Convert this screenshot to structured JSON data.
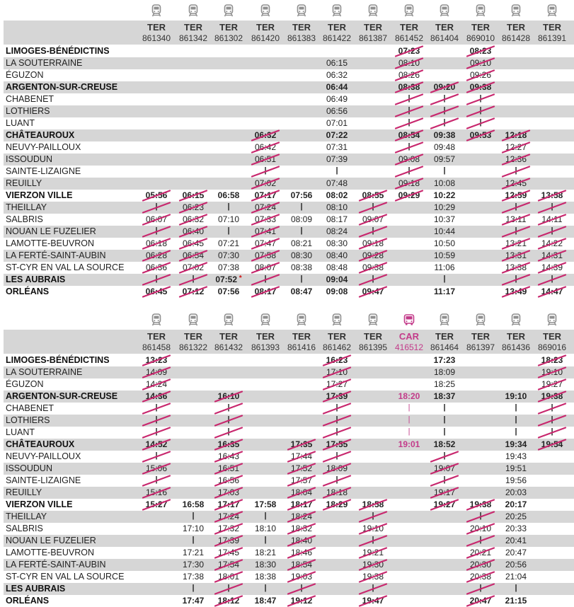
{
  "timetables": [
    {
      "columns": [
        {
          "kind": "TER",
          "number": "861340"
        },
        {
          "kind": "TER",
          "number": "861342"
        },
        {
          "kind": "TER",
          "number": "861302"
        },
        {
          "kind": "TER",
          "number": "861420"
        },
        {
          "kind": "TER",
          "number": "861383"
        },
        {
          "kind": "TER",
          "number": "861422"
        },
        {
          "kind": "TER",
          "number": "861387"
        },
        {
          "kind": "TER",
          "number": "861452"
        },
        {
          "kind": "TER",
          "number": "861404"
        },
        {
          "kind": "TER",
          "number": "869010"
        },
        {
          "kind": "TER",
          "number": "861428"
        },
        {
          "kind": "TER",
          "number": "861391"
        }
      ],
      "rows": [
        {
          "station": "LIMOGES-BÉNÉDICTINS",
          "bold": true,
          "times": [
            "",
            "",
            "",
            "",
            "",
            "",
            "",
            "07:23",
            "",
            "08:23",
            "",
            ""
          ],
          "cancelled": [
            7,
            9
          ]
        },
        {
          "station": "LA SOUTERRAINE",
          "times": [
            "",
            "",
            "",
            "",
            "",
            "06:15",
            "",
            "08:10",
            "",
            "09:10",
            "",
            ""
          ],
          "cancelled": [
            7,
            9
          ]
        },
        {
          "station": "ÉGUZON",
          "times": [
            "",
            "",
            "",
            "",
            "",
            "06:32",
            "",
            "08:26",
            "",
            "09:26",
            "",
            ""
          ],
          "cancelled": [
            7,
            9
          ]
        },
        {
          "station": "ARGENTON-SUR-CREUSE",
          "bold": true,
          "times": [
            "",
            "",
            "",
            "",
            "",
            "06:44",
            "",
            "08:38",
            "09:20",
            "09:38",
            "",
            ""
          ],
          "cancelled": [
            7,
            8,
            9
          ]
        },
        {
          "station": "CHABENET",
          "times": [
            "",
            "",
            "",
            "",
            "",
            "06:49",
            "",
            "|",
            "|",
            "|",
            "",
            ""
          ],
          "cancelled": [
            7,
            8,
            9
          ]
        },
        {
          "station": "LOTHIERS",
          "times": [
            "",
            "",
            "",
            "",
            "",
            "06:56",
            "",
            "|",
            "|",
            "|",
            "",
            ""
          ],
          "cancelled": [
            7,
            8,
            9
          ]
        },
        {
          "station": "LUANT",
          "times": [
            "",
            "",
            "",
            "",
            "",
            "07:01",
            "",
            "|",
            "|",
            "|",
            "",
            ""
          ],
          "cancelled": [
            7,
            8,
            9
          ]
        },
        {
          "station": "CHÂTEAUROUX",
          "bold": true,
          "times": [
            "",
            "",
            "",
            "06:32",
            "",
            "07:22",
            "",
            "08:54",
            "09:38",
            "09:53",
            "12:18",
            ""
          ],
          "cancelled": [
            3,
            7,
            9,
            10
          ]
        },
        {
          "station": "NEUVY-PAILLOUX",
          "times": [
            "",
            "",
            "",
            "06:42",
            "",
            "07:31",
            "",
            "|",
            "09:48",
            "",
            "12:27",
            ""
          ],
          "cancelled": [
            3,
            7,
            10
          ]
        },
        {
          "station": "ISSOUDUN",
          "times": [
            "",
            "",
            "",
            "06:51",
            "",
            "07:39",
            "",
            "09:08",
            "09:57",
            "",
            "12:36",
            ""
          ],
          "cancelled": [
            3,
            7,
            10
          ]
        },
        {
          "station": "SAINTE-LIZAIGNE",
          "times": [
            "",
            "",
            "",
            "|",
            "",
            "|",
            "",
            "|",
            "|",
            "",
            "|",
            ""
          ],
          "cancelled": [
            3,
            7,
            10
          ]
        },
        {
          "station": "REUILLY",
          "times": [
            "",
            "",
            "",
            "07:02",
            "",
            "07:48",
            "",
            "09:18",
            "10:08",
            "",
            "12:45",
            ""
          ],
          "cancelled": [
            3,
            7,
            10
          ]
        },
        {
          "station": "VIERZON VILLE",
          "bold": true,
          "times": [
            "05:56",
            "06:15",
            "06:58",
            "07:17",
            "07:56",
            "08:02",
            "08:55",
            "09:29",
            "10:22",
            "",
            "12:59",
            "13:58"
          ],
          "cancelled": [
            0,
            1,
            3,
            6,
            7,
            10,
            11
          ]
        },
        {
          "station": "THEILLAY",
          "times": [
            "|",
            "06:23",
            "|",
            "07:24",
            "|",
            "08:10",
            "|",
            "",
            "10:29",
            "",
            "|",
            "|"
          ],
          "cancelled": [
            0,
            1,
            3,
            6,
            10,
            11
          ]
        },
        {
          "station": "SALBRIS",
          "times": [
            "06:07",
            "06:32",
            "07:10",
            "07:33",
            "08:09",
            "08:17",
            "09:07",
            "",
            "10:37",
            "",
            "13:11",
            "14:11"
          ],
          "cancelled": [
            0,
            1,
            3,
            6,
            10,
            11
          ]
        },
        {
          "station": "NOUAN LE FUZELIER",
          "times": [
            "|",
            "06:40",
            "|",
            "07:41",
            "|",
            "08:24",
            "|",
            "",
            "10:44",
            "",
            "|",
            "|"
          ],
          "cancelled": [
            0,
            1,
            3,
            6,
            10,
            11
          ]
        },
        {
          "station": "LAMOTTE-BEUVRON",
          "times": [
            "06:18",
            "06:45",
            "07:21",
            "07:47",
            "08:21",
            "08:30",
            "09:18",
            "",
            "10:50",
            "",
            "13:21",
            "14:22"
          ],
          "cancelled": [
            0,
            1,
            3,
            6,
            10,
            11
          ]
        },
        {
          "station": "LA FERTÉ-SAINT-AUBIN",
          "times": [
            "06:28",
            "06:54",
            "07:30",
            "07:58",
            "08:30",
            "08:40",
            "09:28",
            "",
            "10:59",
            "",
            "13:31",
            "14:31"
          ],
          "cancelled": [
            0,
            1,
            3,
            6,
            10,
            11
          ]
        },
        {
          "station": "ST-CYR EN VAL LA SOURCE",
          "times": [
            "06:36",
            "07:02",
            "07:38",
            "08:07",
            "08:38",
            "08:48",
            "09:38",
            "",
            "11:06",
            "",
            "13:38",
            "14:39"
          ],
          "cancelled": [
            0,
            1,
            3,
            6,
            10,
            11
          ]
        },
        {
          "station": "LES AUBRAIS",
          "bold": true,
          "times": [
            "|",
            "|",
            "07:52",
            "|",
            "|",
            "09:04",
            "|",
            "",
            "|",
            "",
            "|",
            "|"
          ],
          "starred": [
            2
          ],
          "cancelled": [
            0,
            1,
            3,
            6,
            10,
            11
          ]
        },
        {
          "station": "ORLÉANS",
          "bold": true,
          "times": [
            "06:45",
            "07:12",
            "07:56",
            "08:17",
            "08:47",
            "09:08",
            "09:47",
            "",
            "11:17",
            "",
            "13:49",
            "14:47"
          ],
          "cancelled": [
            0,
            1,
            3,
            6,
            10,
            11
          ]
        }
      ]
    },
    {
      "columns": [
        {
          "kind": "TER",
          "number": "861458"
        },
        {
          "kind": "TER",
          "number": "861322"
        },
        {
          "kind": "TER",
          "number": "861432"
        },
        {
          "kind": "TER",
          "number": "861393"
        },
        {
          "kind": "TER",
          "number": "861416"
        },
        {
          "kind": "TER",
          "number": "861462"
        },
        {
          "kind": "TER",
          "number": "861395"
        },
        {
          "kind": "CAR",
          "number": "416512",
          "bus": true
        },
        {
          "kind": "TER",
          "number": "861464"
        },
        {
          "kind": "TER",
          "number": "861397"
        },
        {
          "kind": "TER",
          "number": "861436"
        },
        {
          "kind": "TER",
          "number": "869016"
        }
      ],
      "rows": [
        {
          "station": "LIMOGES-BÉNÉDICTINS",
          "bold": true,
          "times": [
            "13:23",
            "",
            "",
            "",
            "",
            "16:23",
            "",
            "",
            "17:23",
            "",
            "",
            "18:23"
          ],
          "cancelled": [
            0,
            5,
            11
          ]
        },
        {
          "station": "LA SOUTERRAINE",
          "times": [
            "14:09",
            "",
            "",
            "",
            "",
            "17:10",
            "",
            "",
            "18:09",
            "",
            "",
            "19:10"
          ],
          "cancelled": [
            0,
            5,
            11
          ]
        },
        {
          "station": "ÉGUZON",
          "times": [
            "14:24",
            "",
            "",
            "",
            "",
            "17:27",
            "",
            "",
            "18:25",
            "",
            "",
            "19:27"
          ],
          "cancelled": [
            0,
            5,
            11
          ]
        },
        {
          "station": "ARGENTON-SUR-CREUSE",
          "bold": true,
          "times": [
            "14:36",
            "",
            "16:10",
            "",
            "",
            "17:39",
            "",
            "18:20",
            "18:37",
            "",
            "19:10",
            "19:38"
          ],
          "cancelled": [
            0,
            2,
            5,
            11
          ]
        },
        {
          "station": "CHABENET",
          "times": [
            "|",
            "",
            "|",
            "",
            "",
            "|",
            "",
            "|",
            "|",
            "",
            "|",
            "|"
          ],
          "cancelled": [
            0,
            2,
            5,
            11
          ]
        },
        {
          "station": "LOTHIERS",
          "times": [
            "|",
            "",
            "|",
            "",
            "",
            "|",
            "",
            "|",
            "|",
            "",
            "|",
            "|"
          ],
          "cancelled": [
            0,
            2,
            5,
            11
          ]
        },
        {
          "station": "LUANT",
          "times": [
            "|",
            "",
            "|",
            "",
            "",
            "|",
            "",
            "|",
            "|",
            "",
            "|",
            "|"
          ],
          "cancelled": [
            0,
            2,
            5,
            11
          ]
        },
        {
          "station": "CHÂTEAUROUX",
          "bold": true,
          "times": [
            "14:52",
            "",
            "16:35",
            "",
            "17:35",
            "17:55",
            "",
            "19:01",
            "18:52",
            "",
            "19:34",
            "19:54"
          ],
          "cancelled": [
            0,
            2,
            4,
            5,
            11
          ]
        },
        {
          "station": "NEUVY-PAILLOUX",
          "times": [
            "|",
            "",
            "16:43",
            "",
            "17:44",
            "|",
            "",
            "",
            "|",
            "",
            "19:43",
            ""
          ],
          "cancelled": [
            0,
            2,
            4,
            5,
            8
          ]
        },
        {
          "station": "ISSOUDUN",
          "times": [
            "15:06",
            "",
            "16:51",
            "",
            "17:52",
            "18:09",
            "",
            "",
            "19:07",
            "",
            "19:51",
            ""
          ],
          "cancelled": [
            0,
            2,
            4,
            5,
            8
          ]
        },
        {
          "station": "SAINTE-LIZAIGNE",
          "times": [
            "|",
            "",
            "16:56",
            "",
            "17:57",
            "|",
            "",
            "",
            "|",
            "",
            "19:56",
            ""
          ],
          "cancelled": [
            0,
            2,
            4,
            5,
            8
          ]
        },
        {
          "station": "REUILLY",
          "times": [
            "15:16",
            "",
            "17:03",
            "",
            "18:04",
            "18:18",
            "",
            "",
            "19:17",
            "",
            "20:03",
            ""
          ],
          "cancelled": [
            0,
            2,
            4,
            5,
            8
          ]
        },
        {
          "station": "VIERZON VILLE",
          "bold": true,
          "times": [
            "15:27",
            "16:58",
            "17:17",
            "17:58",
            "18:17",
            "18:29",
            "18:58",
            "",
            "19:27",
            "19:38",
            "20:17",
            ""
          ],
          "cancelled": [
            0,
            2,
            4,
            5,
            6,
            8,
            9
          ]
        },
        {
          "station": "THEILLAY",
          "times": [
            "",
            "|",
            "17:24",
            "|",
            "18:24",
            "",
            "|",
            "",
            "",
            "|",
            "20:25",
            ""
          ],
          "cancelled": [
            2,
            4,
            6,
            9
          ]
        },
        {
          "station": "SALBRIS",
          "times": [
            "",
            "17:10",
            "17:32",
            "18:10",
            "18:32",
            "",
            "19:10",
            "",
            "",
            "20:10",
            "20:33",
            ""
          ],
          "cancelled": [
            2,
            4,
            6,
            9
          ]
        },
        {
          "station": "NOUAN LE FUZELIER",
          "times": [
            "",
            "|",
            "17:39",
            "|",
            "18:40",
            "",
            "|",
            "",
            "",
            "|",
            "20:41",
            ""
          ],
          "cancelled": [
            2,
            4,
            6,
            9
          ]
        },
        {
          "station": "LAMOTTE-BEUVRON",
          "times": [
            "",
            "17:21",
            "17:45",
            "18:21",
            "18:46",
            "",
            "19:21",
            "",
            "",
            "20:21",
            "20:47",
            ""
          ],
          "cancelled": [
            2,
            4,
            6,
            9
          ]
        },
        {
          "station": "LA FERTÉ-SAINT-AUBIN",
          "times": [
            "",
            "17:30",
            "17:54",
            "18:30",
            "18:54",
            "",
            "19:30",
            "",
            "",
            "20:30",
            "20:56",
            ""
          ],
          "cancelled": [
            2,
            4,
            6,
            9
          ]
        },
        {
          "station": "ST-CYR EN VAL LA SOURCE",
          "times": [
            "",
            "17:38",
            "18:01",
            "18:38",
            "19:03",
            "",
            "19:38",
            "",
            "",
            "20:38",
            "21:04",
            ""
          ],
          "cancelled": [
            2,
            4,
            6,
            9
          ]
        },
        {
          "station": "LES AUBRAIS",
          "bold": true,
          "times": [
            "",
            "|",
            "|",
            "|",
            "|",
            "",
            "|",
            "",
            "",
            "|",
            "|",
            ""
          ],
          "cancelled": [
            2,
            4,
            6,
            9
          ]
        },
        {
          "station": "ORLÉANS",
          "bold": true,
          "times": [
            "",
            "17:47",
            "18:12",
            "18:47",
            "19:12",
            "",
            "19:47",
            "",
            "",
            "20:47",
            "21:15",
            ""
          ],
          "cancelled": [
            2,
            4,
            6,
            9
          ]
        }
      ]
    }
  ],
  "colors": {
    "cancel_strike": "#c8286e",
    "bus": "#c33b8a",
    "row_shade": "#d6d6d6",
    "icon": "#8f8f8f"
  },
  "icons": {
    "train": "train-icon",
    "bus": "bus-icon"
  }
}
